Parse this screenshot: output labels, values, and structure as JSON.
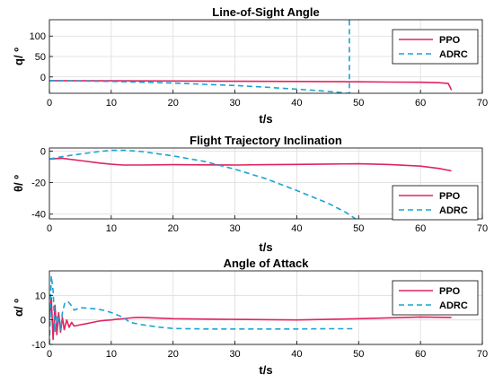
{
  "colors": {
    "ppo": "#e0245e",
    "adrc": "#1aa3d6",
    "grid": "#dcdcdc",
    "axis": "#000000"
  },
  "chart_data": [
    {
      "type": "line",
      "title": "Line-of-Sight Angle",
      "xlabel": "t/s",
      "ylabel": "q/ º",
      "xlim": [
        0,
        70
      ],
      "ylim": [
        -40,
        140
      ],
      "xticks": [
        0,
        10,
        20,
        30,
        40,
        50,
        60,
        70
      ],
      "yticks": [
        0,
        50,
        100
      ],
      "yticklabels": [
        "0",
        "50",
        "100"
      ],
      "grid": true,
      "legend": "top-right",
      "series": [
        {
          "name": "PPO",
          "style": "solid",
          "x": [
            0,
            10,
            20,
            30,
            40,
            50,
            55,
            60,
            63,
            64.5,
            64.8,
            65
          ],
          "y": [
            -9,
            -9.5,
            -10,
            -10.5,
            -11,
            -12,
            -12.5,
            -13,
            -14,
            -16,
            -25,
            -32
          ]
        },
        {
          "name": "ADRC",
          "style": "dashed",
          "x": [
            0,
            5,
            10,
            15,
            20,
            25,
            30,
            35,
            40,
            44,
            47,
            48,
            48.5,
            48.5
          ],
          "y": [
            -9,
            -10,
            -11,
            -13,
            -15,
            -18,
            -21,
            -25,
            -30,
            -34,
            -38,
            -40,
            -40,
            140
          ]
        }
      ]
    },
    {
      "type": "line",
      "title": "Flight Trajectory Inclination",
      "xlabel": "t/s",
      "ylabel": "θ/ º",
      "xlim": [
        0,
        70
      ],
      "ylim": [
        -43,
        2
      ],
      "xticks": [
        0,
        10,
        20,
        30,
        40,
        50,
        60,
        70
      ],
      "yticks": [
        0,
        -20,
        -40
      ],
      "yticklabels": [
        "0",
        "-20",
        "-40"
      ],
      "grid": true,
      "legend": "bottom-right",
      "series": [
        {
          "name": "PPO",
          "style": "solid",
          "x": [
            0,
            2,
            5,
            8,
            10,
            12,
            15,
            20,
            25,
            30,
            35,
            40,
            45,
            50,
            55,
            60,
            63,
            65
          ],
          "y": [
            -5,
            -4.5,
            -6,
            -7.5,
            -8.3,
            -8.8,
            -8.8,
            -8.6,
            -8.7,
            -8.8,
            -8.6,
            -8.4,
            -8.2,
            -8,
            -8.5,
            -9.5,
            -11,
            -12.5
          ]
        },
        {
          "name": "ADRC",
          "style": "dashed",
          "x": [
            0,
            2,
            5,
            8,
            10,
            12,
            15,
            20,
            25,
            30,
            35,
            40,
            45,
            48,
            49.5
          ],
          "y": [
            -5,
            -3.5,
            -1.8,
            -0.3,
            0.5,
            0.6,
            -0.3,
            -3,
            -6.5,
            -11.5,
            -17.5,
            -25,
            -33,
            -39,
            -43
          ]
        }
      ]
    },
    {
      "type": "line",
      "title": "Angle of Attack",
      "xlabel": "t/s",
      "ylabel": "α/ º",
      "xlim": [
        0,
        70
      ],
      "ylim": [
        -10,
        20
      ],
      "xticks": [
        0,
        10,
        20,
        30,
        40,
        50,
        60,
        70
      ],
      "yticks": [
        10,
        0,
        -10
      ],
      "yticklabels": [
        "10",
        "0",
        "-10"
      ],
      "grid": true,
      "legend": "top-right",
      "series": [
        {
          "name": "PPO",
          "style": "solid",
          "x": [
            0,
            0.3,
            0.6,
            0.9,
            1.2,
            1.5,
            1.8,
            2.1,
            2.4,
            2.8,
            3.2,
            3.6,
            4,
            5,
            6,
            7,
            8,
            9,
            10,
            11,
            12,
            13,
            14,
            15,
            20,
            30,
            40,
            50,
            60,
            65
          ],
          "y": [
            0,
            9,
            -8,
            6,
            -6,
            3,
            -5,
            1,
            -4,
            0,
            -3,
            -1,
            -2.5,
            -2,
            -1.5,
            -1,
            -0.5,
            -0.2,
            0,
            0.3,
            0.5,
            0.8,
            1,
            1,
            0.5,
            0.2,
            0,
            0.5,
            1.2,
            1
          ]
        },
        {
          "name": "ADRC",
          "style": "dashed",
          "x": [
            0,
            0.3,
            0.6,
            0.9,
            1.2,
            1.5,
            1.8,
            2.1,
            2.5,
            3,
            3.5,
            4,
            5,
            6,
            7,
            8,
            9,
            10,
            11,
            12,
            13,
            15,
            18,
            20,
            25,
            30,
            40,
            45,
            49,
            49.3
          ],
          "y": [
            -10,
            18,
            12,
            -5,
            2,
            0,
            -4,
            3,
            7,
            7.5,
            6,
            4,
            5,
            4.8,
            4.6,
            4.3,
            3.8,
            3,
            2,
            1,
            -1,
            -2,
            -3,
            -3.5,
            -3.7,
            -3.7,
            -3.7,
            -3.6,
            -3.6,
            -4
          ]
        }
      ]
    }
  ]
}
